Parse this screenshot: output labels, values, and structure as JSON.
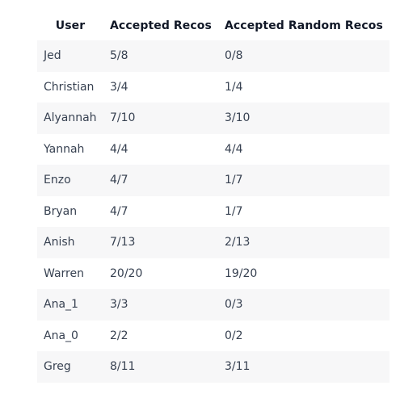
{
  "table": {
    "headers": [
      "User",
      "Accepted Recos",
      "Accepted Random Recos"
    ],
    "rows": [
      [
        "Jed",
        "5/8",
        "0/8"
      ],
      [
        "Christian",
        "3/4",
        "1/4"
      ],
      [
        "Alyannah",
        "7/10",
        "3/10"
      ],
      [
        "Yannah",
        "4/4",
        "4/4"
      ],
      [
        "Enzo",
        "4/7",
        "1/7"
      ],
      [
        "Bryan",
        "4/7",
        "1/7"
      ],
      [
        "Anish",
        "7/13",
        "2/13"
      ],
      [
        "Warren",
        "20/20",
        "19/20"
      ],
      [
        "Ana_1",
        "3/3",
        "0/3"
      ],
      [
        "Ana_0",
        "2/2",
        "0/2"
      ],
      [
        "Greg",
        "8/11",
        "3/11"
      ]
    ]
  }
}
